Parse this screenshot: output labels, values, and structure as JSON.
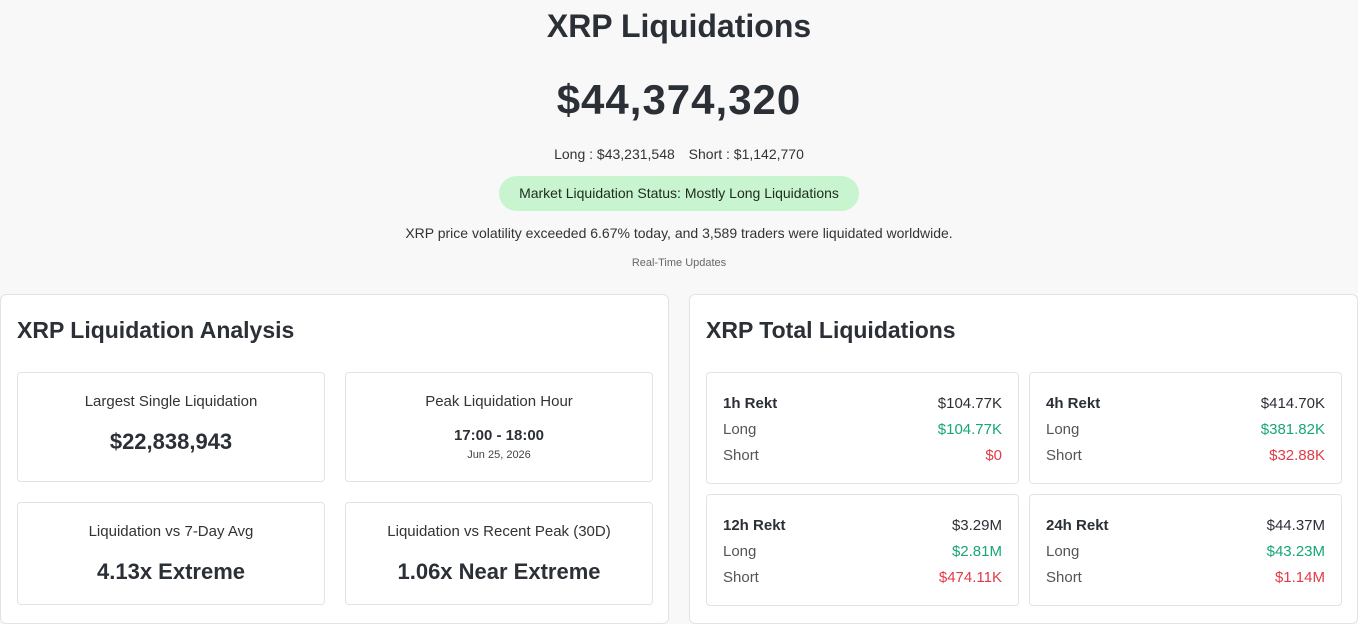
{
  "header": {
    "title": "XRP Liquidations",
    "total": "$44,374,320",
    "long": "Long : $43,231,548",
    "short": "Short : $1,142,770",
    "status": "Market Liquidation Status: Mostly Long Liquidations",
    "summary": "XRP price volatility exceeded 6.67% today, and 3,589 traders were liquidated worldwide.",
    "realtime": "Real-Time Updates"
  },
  "analysis": {
    "title": "XRP Liquidation Analysis",
    "largest_label": "Largest Single Liquidation",
    "largest_value": "$22,838,943",
    "peak_label": "Peak Liquidation Hour",
    "peak_time": "17:00 - 18:00",
    "peak_date": "Jun 25, 2026",
    "vs7_label": "Liquidation vs 7-Day Avg",
    "vs7_value": "4.13x Extreme",
    "vspeak_label": "Liquidation vs Recent Peak (30D)",
    "vspeak_value": "1.06x Near Extreme"
  },
  "totals": {
    "title": "XRP Total Liquidations",
    "long_label": "Long",
    "short_label": "Short",
    "cards": [
      {
        "label": "1h Rekt",
        "total": "$104.77K",
        "long": "$104.77K",
        "short": "$0"
      },
      {
        "label": "4h Rekt",
        "total": "$414.70K",
        "long": "$381.82K",
        "short": "$32.88K"
      },
      {
        "label": "12h Rekt",
        "total": "$3.29M",
        "long": "$2.81M",
        "short": "$474.11K"
      },
      {
        "label": "24h Rekt",
        "total": "$44.37M",
        "long": "$43.23M",
        "short": "$1.14M"
      }
    ]
  },
  "colors": {
    "long": "#17a57a",
    "short": "#e23a48",
    "status_bg": "#c8f5cf"
  }
}
